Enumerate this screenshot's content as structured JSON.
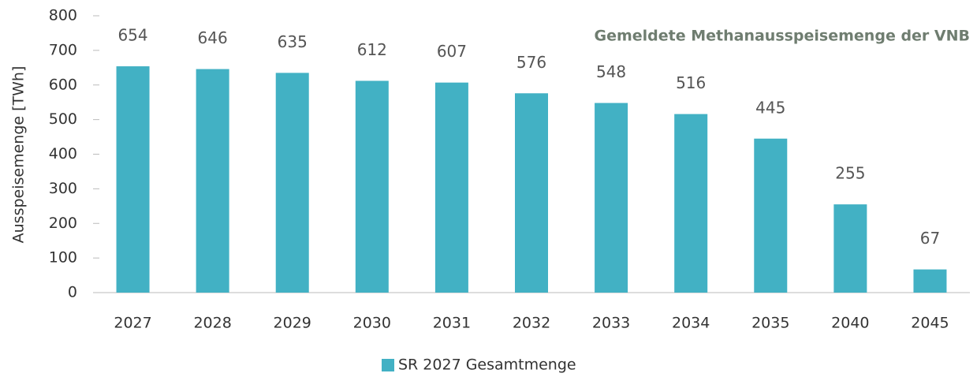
{
  "chart_data": {
    "type": "bar",
    "title": "Gemeldete Methanausspeisemenge der VNB",
    "y_label": "Ausspeisemenge [TWh]",
    "categories": [
      "2027",
      "2028",
      "2029",
      "2030",
      "2031",
      "2032",
      "2033",
      "2034",
      "2035",
      "2040",
      "2045"
    ],
    "series": [
      {
        "name": "SR 2027 Gesamtmenge",
        "color": "#42b1c4",
        "values": [
          654,
          646,
          635,
          612,
          607,
          576,
          548,
          516,
          445,
          255,
          67
        ]
      }
    ],
    "ylim": [
      0,
      800
    ],
    "yticks": [
      0,
      100,
      200,
      300,
      400,
      500,
      600,
      700,
      800
    ],
    "grid": false,
    "legend": "bottom"
  }
}
